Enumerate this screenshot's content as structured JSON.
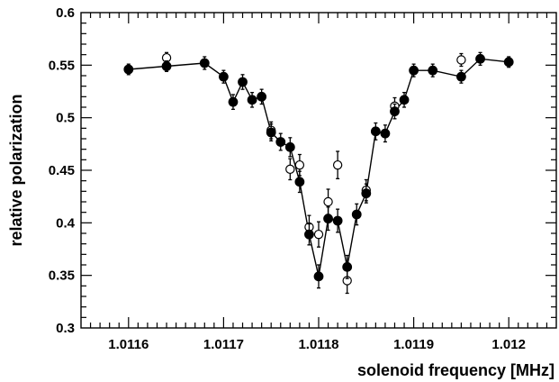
{
  "chart_data": {
    "type": "scatter",
    "xlabel": "solenoid frequency [MHz]",
    "ylabel": "relative polarization",
    "xlim": [
      1.01155,
      1.01205
    ],
    "ylim": [
      0.3,
      0.6
    ],
    "x_ticks": [
      1.0116,
      1.0117,
      1.0118,
      1.0119,
      1.012
    ],
    "x_tick_labels": [
      "1.0116",
      "1.0117",
      "1.0118",
      "1.0119",
      "1.012"
    ],
    "y_ticks": [
      0.3,
      0.35,
      0.4,
      0.45,
      0.5,
      0.55,
      0.6
    ],
    "y_tick_labels": [
      "0.3",
      "0.35",
      "0.4",
      "0.45",
      "0.5",
      "0.55",
      "0.6"
    ],
    "grid": false,
    "legend": "none",
    "series": [
      {
        "marker": "filled-circle",
        "connected": true,
        "color": "#000000",
        "points": [
          {
            "x": 1.0116,
            "y": 0.546,
            "err": 0.005
          },
          {
            "x": 1.01164,
            "y": 0.549,
            "err": 0.005
          },
          {
            "x": 1.01168,
            "y": 0.552,
            "err": 0.006
          },
          {
            "x": 1.0117,
            "y": 0.539,
            "err": 0.006
          },
          {
            "x": 1.01171,
            "y": 0.515,
            "err": 0.007
          },
          {
            "x": 1.01172,
            "y": 0.534,
            "err": 0.007
          },
          {
            "x": 1.01173,
            "y": 0.517,
            "err": 0.007
          },
          {
            "x": 1.01174,
            "y": 0.52,
            "err": 0.007
          },
          {
            "x": 1.01175,
            "y": 0.486,
            "err": 0.008
          },
          {
            "x": 1.01176,
            "y": 0.477,
            "err": 0.008
          },
          {
            "x": 1.01177,
            "y": 0.472,
            "err": 0.009
          },
          {
            "x": 1.01178,
            "y": 0.439,
            "err": 0.01
          },
          {
            "x": 1.01179,
            "y": 0.389,
            "err": 0.01
          },
          {
            "x": 1.0118,
            "y": 0.349,
            "err": 0.011
          },
          {
            "x": 1.01181,
            "y": 0.404,
            "err": 0.011
          },
          {
            "x": 1.01182,
            "y": 0.402,
            "err": 0.011
          },
          {
            "x": 1.01183,
            "y": 0.358,
            "err": 0.011
          },
          {
            "x": 1.01184,
            "y": 0.408,
            "err": 0.01
          },
          {
            "x": 1.01185,
            "y": 0.428,
            "err": 0.009
          },
          {
            "x": 1.01186,
            "y": 0.487,
            "err": 0.008
          },
          {
            "x": 1.01187,
            "y": 0.485,
            "err": 0.008
          },
          {
            "x": 1.01188,
            "y": 0.506,
            "err": 0.007
          },
          {
            "x": 1.01189,
            "y": 0.517,
            "err": 0.007
          },
          {
            "x": 1.0119,
            "y": 0.545,
            "err": 0.006
          },
          {
            "x": 1.01192,
            "y": 0.545,
            "err": 0.006
          },
          {
            "x": 1.01195,
            "y": 0.539,
            "err": 0.006
          },
          {
            "x": 1.01197,
            "y": 0.556,
            "err": 0.006
          },
          {
            "x": 1.012,
            "y": 0.553,
            "err": 0.005
          }
        ]
      },
      {
        "marker": "open-circle",
        "connected": false,
        "color": "#000000",
        "points": [
          {
            "x": 1.01164,
            "y": 0.557,
            "err": 0.005
          },
          {
            "x": 1.01175,
            "y": 0.488,
            "err": 0.008
          },
          {
            "x": 1.01177,
            "y": 0.451,
            "err": 0.01
          },
          {
            "x": 1.01178,
            "y": 0.455,
            "err": 0.01
          },
          {
            "x": 1.01179,
            "y": 0.396,
            "err": 0.011
          },
          {
            "x": 1.0118,
            "y": 0.389,
            "err": 0.012
          },
          {
            "x": 1.01181,
            "y": 0.42,
            "err": 0.012
          },
          {
            "x": 1.01182,
            "y": 0.455,
            "err": 0.013
          },
          {
            "x": 1.01183,
            "y": 0.345,
            "err": 0.012
          },
          {
            "x": 1.01185,
            "y": 0.431,
            "err": 0.01
          },
          {
            "x": 1.01188,
            "y": 0.511,
            "err": 0.008
          },
          {
            "x": 1.01195,
            "y": 0.555,
            "err": 0.006
          }
        ]
      }
    ]
  }
}
